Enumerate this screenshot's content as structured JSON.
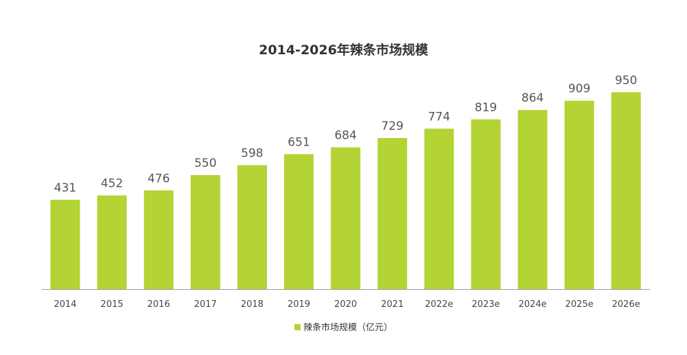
{
  "chart_data": {
    "type": "bar",
    "title": "2014-2026年辣条市场规模",
    "categories": [
      "2014",
      "2015",
      "2016",
      "2017",
      "2018",
      "2019",
      "2020",
      "2021",
      "2022e",
      "2023e",
      "2024e",
      "2025e",
      "2026e"
    ],
    "series": [
      {
        "name": "辣条市场规模（亿元）",
        "values": [
          431,
          452,
          476,
          550,
          598,
          651,
          684,
          729,
          774,
          819,
          864,
          909,
          950
        ]
      }
    ],
    "ylim": [
      0,
      1000
    ],
    "legend": "bottom",
    "grid": false,
    "color": "#b4d334"
  }
}
